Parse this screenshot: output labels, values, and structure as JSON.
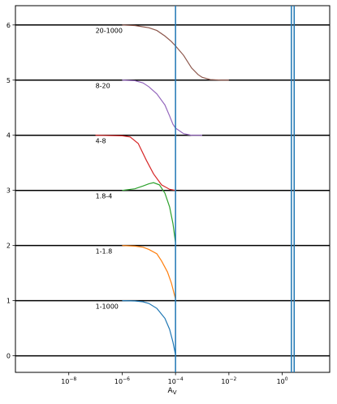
{
  "chart_data": {
    "type": "line",
    "xlabel_base": "A",
    "xlabel_sub": "V",
    "x_scale": "log",
    "xlim": [
      1e-10,
      60
    ],
    "ylim": [
      -0.3,
      6.35
    ],
    "x_ticks": [
      {
        "value": 1e-08,
        "base": "10",
        "exp": "−8"
      },
      {
        "value": 1e-06,
        "base": "10",
        "exp": "−6"
      },
      {
        "value": 0.0001,
        "base": "10",
        "exp": "−4"
      },
      {
        "value": 0.01,
        "base": "10",
        "exp": "−2"
      },
      {
        "value": 1,
        "base": "10",
        "exp": "0"
      }
    ],
    "y_ticks": [
      {
        "value": 0,
        "label": "0"
      },
      {
        "value": 1,
        "label": "1"
      },
      {
        "value": 2,
        "label": "2"
      },
      {
        "value": 3,
        "label": "3"
      },
      {
        "value": 4,
        "label": "4"
      },
      {
        "value": 5,
        "label": "5"
      },
      {
        "value": 6,
        "label": "6"
      }
    ],
    "baselines": [
      0,
      1,
      2,
      3,
      4,
      5,
      6
    ],
    "vlines": [
      0.0001,
      2.2,
      2.8
    ],
    "vline_color": "#1f77b4",
    "band_labels": [
      {
        "text": "20-1000",
        "x": 1e-07,
        "y": 5.9
      },
      {
        "text": "8-20",
        "x": 1e-07,
        "y": 4.9
      },
      {
        "text": "4-8",
        "x": 1e-07,
        "y": 3.9
      },
      {
        "text": "1.8-4",
        "x": 1e-07,
        "y": 2.9
      },
      {
        "text": "1-1.8",
        "x": 1e-07,
        "y": 1.9
      },
      {
        "text": "1-1000",
        "x": 1e-07,
        "y": 0.9
      }
    ],
    "series": [
      {
        "color": "#8c564b",
        "points": [
          [
            1e-06,
            6.0
          ],
          [
            3e-06,
            5.99
          ],
          [
            1e-05,
            5.95
          ],
          [
            2e-05,
            5.9
          ],
          [
            4e-05,
            5.8
          ],
          [
            7e-05,
            5.7
          ],
          [
            0.0001,
            5.62
          ],
          [
            0.0002,
            5.45
          ],
          [
            0.0004,
            5.22
          ],
          [
            0.0007,
            5.1
          ],
          [
            0.001,
            5.05
          ],
          [
            0.002,
            5.01
          ],
          [
            0.005,
            5.0
          ],
          [
            0.01,
            5.0
          ]
        ]
      },
      {
        "color": "#9467bd",
        "points": [
          [
            1e-06,
            5.0
          ],
          [
            3e-06,
            4.99
          ],
          [
            6e-06,
            4.95
          ],
          [
            1e-05,
            4.88
          ],
          [
            2e-05,
            4.75
          ],
          [
            4e-05,
            4.55
          ],
          [
            6e-05,
            4.35
          ],
          [
            8e-05,
            4.2
          ],
          [
            0.0001,
            4.13
          ],
          [
            0.0002,
            4.03
          ],
          [
            0.0004,
            4.0
          ],
          [
            0.001,
            4.0
          ]
        ]
      },
      {
        "color": "#d62728",
        "points": [
          [
            1e-07,
            4.0
          ],
          [
            1e-06,
            3.99
          ],
          [
            2e-06,
            3.97
          ],
          [
            4e-06,
            3.85
          ],
          [
            8e-06,
            3.55
          ],
          [
            1.5e-05,
            3.3
          ],
          [
            3e-05,
            3.1
          ],
          [
            6e-05,
            3.02
          ],
          [
            0.0001,
            3.0
          ]
        ]
      },
      {
        "color": "#2ca02c",
        "points": [
          [
            1e-06,
            3.0
          ],
          [
            3e-06,
            3.03
          ],
          [
            6e-06,
            3.08
          ],
          [
            1e-05,
            3.12
          ],
          [
            1.5e-05,
            3.14
          ],
          [
            2.5e-05,
            3.1
          ],
          [
            4e-05,
            2.95
          ],
          [
            6e-05,
            2.7
          ],
          [
            8e-05,
            2.4
          ],
          [
            0.0001,
            2.05
          ]
        ]
      },
      {
        "color": "#ff7f0e",
        "points": [
          [
            1e-06,
            2.0
          ],
          [
            3e-06,
            1.99
          ],
          [
            6e-06,
            1.97
          ],
          [
            1e-05,
            1.93
          ],
          [
            2e-05,
            1.85
          ],
          [
            3e-05,
            1.72
          ],
          [
            5e-05,
            1.52
          ],
          [
            7e-05,
            1.32
          ],
          [
            0.0001,
            1.03
          ]
        ]
      },
      {
        "color": "#1f77b4",
        "points": [
          [
            1e-06,
            1.0
          ],
          [
            3e-06,
            0.995
          ],
          [
            6e-06,
            0.98
          ],
          [
            1e-05,
            0.95
          ],
          [
            2e-05,
            0.86
          ],
          [
            4e-05,
            0.68
          ],
          [
            6e-05,
            0.48
          ],
          [
            8e-05,
            0.25
          ],
          [
            0.0001,
            0.02
          ]
        ]
      }
    ]
  }
}
